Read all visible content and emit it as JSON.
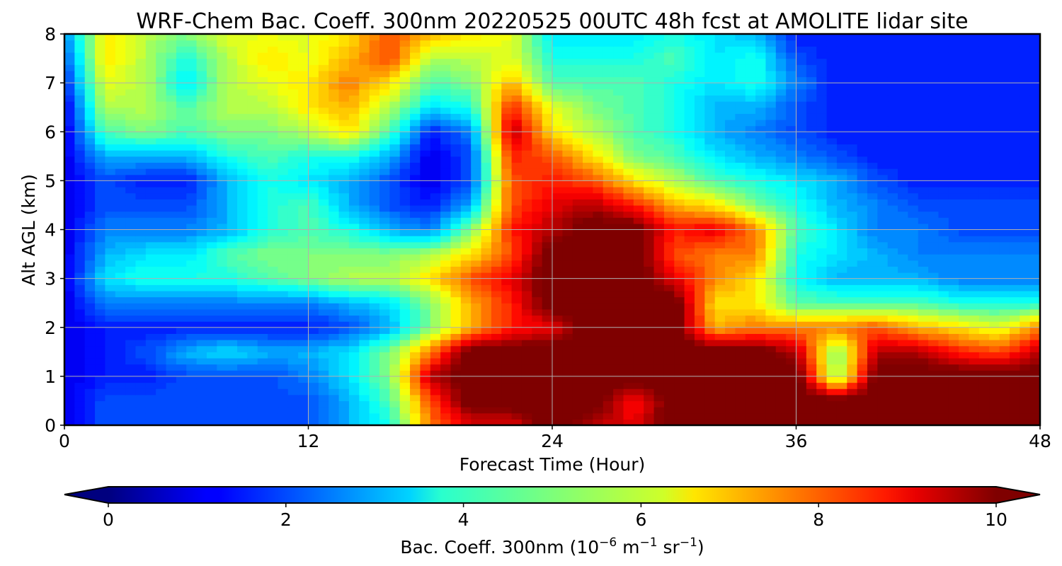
{
  "chart_data": {
    "type": "heatmap",
    "title": "WRF-Chem Bac. Coeff. 300nm  20220525 00UTC 48h fcst at AMOLITE lidar site",
    "xlabel": "Forecast Time (Hour)",
    "ylabel": "Alt AGL (km)",
    "xlim": [
      0,
      48
    ],
    "ylim": [
      0,
      8
    ],
    "x_ticks": [
      "0",
      "12",
      "24",
      "36",
      "48"
    ],
    "y_ticks": [
      "0",
      "1",
      "2",
      "3",
      "4",
      "5",
      "6",
      "7",
      "8"
    ],
    "grid": true,
    "colorbar": {
      "label_main": "Bac. Coeff. 300nm  (10",
      "label_exp1": "−6",
      "label_mid": " m",
      "label_exp2": "−1",
      "label_mid2": " sr",
      "label_exp3": "−1",
      "label_end": ")",
      "colormap": "jet",
      "range": [
        0,
        10
      ],
      "extend": "both",
      "ticks": [
        "0",
        "2",
        "4",
        "6",
        "8",
        "10"
      ]
    },
    "x": [
      0,
      2,
      4,
      6,
      8,
      10,
      12,
      14,
      16,
      18,
      20,
      22,
      24,
      26,
      28,
      30,
      32,
      34,
      36,
      38,
      40,
      42,
      44,
      46,
      48
    ],
    "y": [
      0,
      0.5,
      1,
      1.5,
      2,
      2.5,
      3,
      3.5,
      4,
      4.5,
      5,
      5.5,
      6,
      6.5,
      7,
      7.5,
      8
    ],
    "values": [
      [
        1.0,
        2.0,
        2.0,
        2.0,
        2.0,
        2.0,
        2.0,
        3.0,
        4.0,
        7.5,
        9.0,
        9.0,
        10.5,
        9.5,
        9.0,
        10.5,
        10.5,
        10.5,
        10.5,
        10.5,
        10.5,
        10.5,
        10.0,
        10.5,
        10.5
      ],
      [
        1.0,
        2.0,
        2.0,
        2.0,
        2.0,
        2.0,
        2.0,
        3.0,
        4.5,
        8.0,
        10.5,
        10.5,
        10.5,
        10.5,
        8.5,
        10.5,
        10.5,
        10.5,
        10.5,
        10.5,
        10.5,
        10.5,
        10.5,
        10.5,
        10.5
      ],
      [
        1.0,
        1.5,
        1.5,
        2.0,
        2.0,
        2.0,
        2.5,
        3.5,
        5.0,
        9.5,
        10.5,
        10.5,
        10.5,
        10.5,
        10.5,
        10.5,
        10.5,
        10.5,
        10.5,
        5.0,
        10.5,
        10.5,
        10.5,
        10.5,
        10.5
      ],
      [
        1.0,
        1.5,
        2.0,
        3.0,
        3.5,
        3.0,
        3.0,
        3.5,
        5.0,
        7.5,
        10.5,
        10.5,
        10.5,
        10.5,
        10.5,
        10.5,
        10.5,
        10.5,
        9.5,
        5.0,
        9.5,
        9.5,
        8.5,
        8.0,
        9.5
      ],
      [
        1.0,
        1.5,
        1.5,
        1.5,
        1.5,
        1.5,
        1.5,
        2.0,
        3.0,
        5.0,
        7.0,
        8.5,
        9.0,
        10.5,
        10.5,
        10.5,
        7.0,
        7.5,
        7.5,
        7.5,
        8.0,
        7.0,
        6.5,
        6.0,
        7.5
      ],
      [
        1.0,
        2.5,
        2.5,
        2.5,
        2.5,
        2.5,
        2.5,
        3.0,
        3.5,
        5.0,
        7.0,
        8.5,
        10.5,
        10.5,
        10.5,
        10.5,
        6.5,
        6.5,
        4.5,
        4.5,
        4.5,
        4.5,
        4.0,
        4.0,
        4.0
      ],
      [
        1.0,
        3.5,
        4.0,
        4.0,
        4.0,
        4.5,
        5.0,
        5.5,
        5.5,
        6.5,
        8.0,
        9.0,
        10.5,
        10.5,
        10.5,
        9.0,
        7.5,
        6.5,
        4.0,
        3.0,
        3.0,
        3.0,
        2.5,
        2.5,
        2.5
      ],
      [
        1.0,
        3.0,
        3.5,
        3.5,
        4.5,
        5.0,
        5.0,
        5.0,
        5.0,
        5.5,
        6.5,
        8.0,
        10.5,
        10.5,
        10.5,
        8.0,
        7.5,
        7.5,
        4.0,
        3.5,
        3.0,
        2.5,
        2.5,
        2.5,
        2.5
      ],
      [
        1.0,
        2.5,
        2.5,
        2.5,
        3.0,
        4.0,
        4.5,
        4.0,
        3.0,
        2.5,
        5.0,
        8.5,
        9.5,
        10.5,
        10.5,
        8.5,
        9.0,
        7.5,
        4.5,
        3.5,
        2.5,
        2.5,
        2.0,
        2.0,
        2.0
      ],
      [
        1.0,
        2.0,
        2.0,
        2.0,
        3.0,
        4.0,
        4.5,
        3.0,
        2.0,
        1.5,
        3.0,
        8.0,
        9.0,
        9.5,
        8.5,
        7.0,
        6.5,
        5.0,
        4.0,
        3.0,
        2.5,
        2.0,
        2.0,
        2.0,
        2.0
      ],
      [
        1.0,
        2.0,
        1.5,
        1.5,
        3.0,
        4.0,
        3.5,
        3.0,
        2.0,
        1.0,
        2.0,
        8.0,
        8.5,
        8.0,
        6.5,
        5.5,
        4.5,
        4.0,
        3.5,
        3.0,
        2.0,
        1.5,
        1.5,
        1.5,
        1.5
      ],
      [
        1.0,
        3.0,
        3.0,
        3.0,
        4.0,
        4.5,
        4.0,
        4.0,
        3.0,
        1.0,
        2.0,
        8.5,
        8.0,
        6.5,
        5.0,
        4.5,
        3.5,
        3.0,
        2.5,
        2.0,
        1.5,
        1.5,
        1.5,
        1.5,
        1.5
      ],
      [
        1.0,
        4.5,
        5.0,
        4.5,
        5.0,
        5.0,
        5.5,
        6.5,
        4.5,
        1.5,
        2.5,
        9.5,
        6.5,
        5.5,
        4.5,
        4.0,
        3.0,
        2.5,
        2.0,
        1.5,
        1.5,
        1.5,
        1.5,
        1.5,
        1.5
      ],
      [
        1.0,
        5.5,
        5.5,
        4.5,
        5.5,
        5.5,
        6.5,
        7.0,
        5.5,
        3.5,
        4.0,
        8.5,
        6.0,
        5.0,
        4.5,
        4.0,
        3.0,
        3.0,
        2.0,
        1.5,
        1.5,
        1.5,
        1.5,
        1.5,
        1.5
      ],
      [
        1.5,
        6.0,
        5.5,
        3.5,
        5.5,
        6.0,
        6.5,
        7.5,
        6.5,
        4.5,
        5.0,
        7.0,
        4.5,
        4.5,
        4.5,
        4.0,
        3.5,
        4.0,
        2.5,
        1.5,
        1.5,
        1.5,
        1.5,
        1.5,
        1.5
      ],
      [
        2.0,
        6.5,
        5.5,
        4.0,
        5.5,
        6.5,
        6.0,
        7.0,
        8.0,
        5.5,
        5.5,
        6.0,
        4.0,
        4.0,
        4.0,
        4.5,
        3.5,
        4.0,
        2.0,
        1.5,
        1.5,
        1.5,
        1.5,
        1.5,
        1.5
      ],
      [
        2.5,
        6.5,
        5.5,
        5.0,
        6.0,
        6.0,
        6.0,
        6.5,
        8.0,
        7.0,
        6.5,
        6.0,
        3.5,
        3.5,
        3.5,
        4.0,
        3.5,
        3.0,
        1.5,
        1.5,
        1.5,
        1.5,
        1.5,
        1.5,
        1.5
      ]
    ]
  }
}
